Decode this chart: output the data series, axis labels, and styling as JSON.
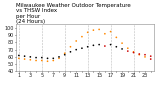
{
  "title": "Milwaukee Weather Outdoor Temperature vs THSW Index per Hour (24 Hours)",
  "temp_hours": [
    1,
    2,
    3,
    4,
    5,
    6,
    7,
    8,
    9,
    10,
    11,
    12,
    13,
    14,
    15,
    16,
    17,
    18,
    19,
    20,
    21,
    22,
    23,
    24
  ],
  "temp_values": [
    62,
    61,
    60,
    59,
    59,
    58,
    58,
    60,
    63,
    67,
    70,
    72,
    74,
    76,
    77,
    75,
    77,
    74,
    71,
    68,
    66,
    64,
    63,
    61
  ],
  "thsw_hours": [
    1,
    2,
    3,
    4,
    5,
    6,
    7,
    8,
    9,
    10,
    11,
    12,
    13,
    14,
    15,
    16,
    17,
    18,
    19,
    20,
    21,
    22,
    23,
    24
  ],
  "thsw_values": [
    58,
    57,
    56,
    55,
    55,
    54,
    55,
    58,
    65,
    74,
    82,
    88,
    94,
    97,
    98,
    92,
    95,
    87,
    79,
    72,
    67,
    63,
    60,
    57
  ],
  "temp_color": "#000000",
  "thsw_color": "#ff8800",
  "highlight_color": "#cc0000",
  "red_temp_hours": [
    16,
    20,
    21,
    22,
    23,
    24
  ],
  "red_thsw_hours": [
    24
  ],
  "red_thsw_values": [
    57
  ],
  "ylim": [
    40,
    105
  ],
  "grid_hours": [
    1,
    5,
    9,
    13,
    17,
    21,
    25
  ],
  "xtick_hours": [
    1,
    3,
    5,
    7,
    9,
    11,
    13,
    15,
    17,
    19,
    21,
    23
  ],
  "ytick_vals": [
    40,
    50,
    60,
    70,
    80,
    90,
    100
  ],
  "background_color": "#ffffff",
  "grid_color": "#bbbbbb",
  "title_fontsize": 4.0,
  "tick_fontsize": 3.5
}
